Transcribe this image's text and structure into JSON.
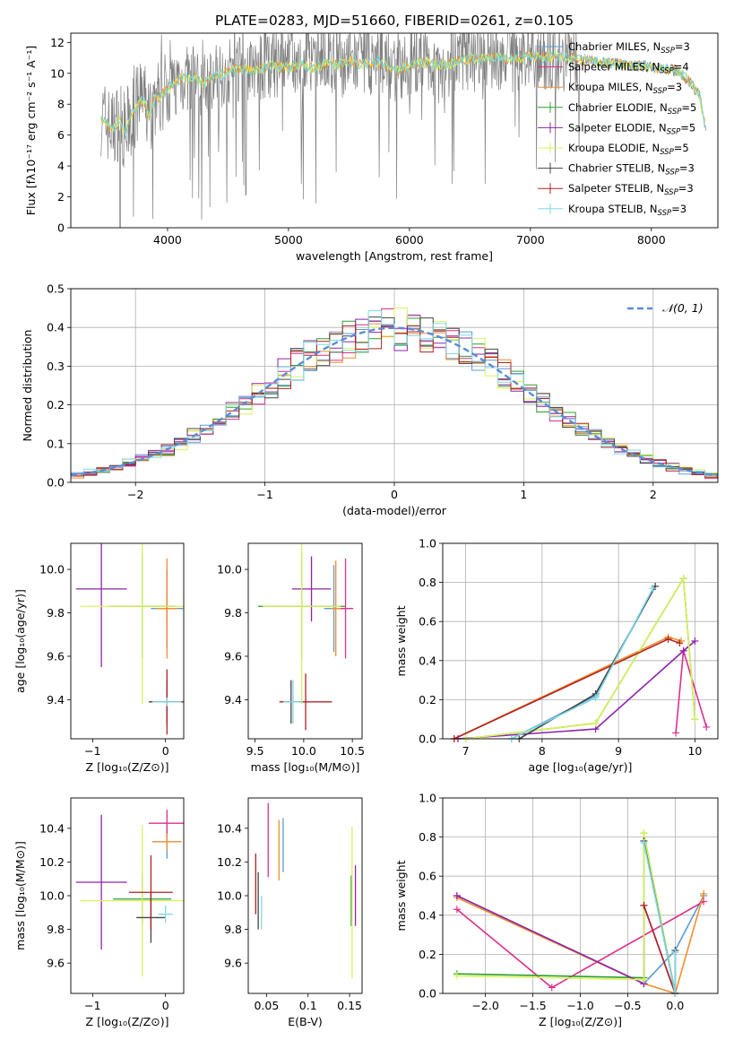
{
  "colors": {
    "c1": "#5b9bd5",
    "c2": "#dc2f8c",
    "c3": "#f28e2b",
    "c4": "#2ca02c",
    "c5": "#8e24aa",
    "c6": "#d9f25c",
    "c7": "#444444",
    "c8": "#b22222",
    "c9": "#7fd8e6",
    "grey": "#808080",
    "cyan": "#6fd6dc",
    "gauss": "#5b8bd8"
  },
  "series": [
    {
      "name": "Chabrier MILES, N",
      "sub": "SSP",
      "suffix": "=3",
      "color": "#5b9bd5"
    },
    {
      "name": "Salpeter MILES, N",
      "sub": "SSP",
      "suffix": "=4",
      "color": "#dc2f8c"
    },
    {
      "name": "Kroupa MILES, N",
      "sub": "SSP",
      "suffix": "=3",
      "color": "#f28e2b"
    },
    {
      "name": "Chabrier ELODIE, N",
      "sub": "SSP",
      "suffix": "=5",
      "color": "#2ca02c"
    },
    {
      "name": "Salpeter ELODIE, N",
      "sub": "SSP",
      "suffix": "=5",
      "color": "#8e24aa"
    },
    {
      "name": "Kroupa ELODIE, N",
      "sub": "SSP",
      "suffix": "=5",
      "color": "#d9f25c"
    },
    {
      "name": "Chabrier STELIB, N",
      "sub": "SSP",
      "suffix": "=3",
      "color": "#444444"
    },
    {
      "name": "Salpeter STELIB, N",
      "sub": "SSP",
      "suffix": "=3",
      "color": "#b22222"
    },
    {
      "name": "Kroupa STELIB, N",
      "sub": "SSP",
      "suffix": "=3",
      "color": "#7fd8e6"
    }
  ],
  "chart_data": [
    {
      "type": "line",
      "title": "PLATE=0283, MJD=51660, FIBERID=0261, z=0.105",
      "xlabel": "wavelength [Angstrom, rest frame]",
      "ylabel": "Flux [fλ10⁻¹⁷ erg cm⁻² s⁻¹ A⁻¹]",
      "xlim": [
        3200,
        8550
      ],
      "ylim": [
        0,
        12.6
      ],
      "xticks": [
        4000,
        5000,
        6000,
        7000,
        8000
      ],
      "yticks": [
        0,
        2,
        4,
        6,
        8,
        10,
        12
      ],
      "continuum": [
        [
          3450,
          7.2
        ],
        [
          3500,
          6.8
        ],
        [
          3550,
          6.4
        ],
        [
          3600,
          7.0
        ],
        [
          3650,
          6.1
        ],
        [
          3700,
          7.4
        ],
        [
          3750,
          7.9
        ],
        [
          3800,
          8.3
        ],
        [
          3850,
          7.2
        ],
        [
          3900,
          8.4
        ],
        [
          3950,
          8.6
        ],
        [
          4000,
          9.0
        ],
        [
          4100,
          9.6
        ],
        [
          4200,
          9.7
        ],
        [
          4300,
          9.3
        ],
        [
          4400,
          9.8
        ],
        [
          4500,
          10.1
        ],
        [
          4600,
          10.3
        ],
        [
          4700,
          10.2
        ],
        [
          4800,
          10.4
        ],
        [
          4900,
          10.5
        ],
        [
          5000,
          10.4
        ],
        [
          5100,
          10.6
        ],
        [
          5200,
          10.3
        ],
        [
          5300,
          10.7
        ],
        [
          5400,
          10.5
        ],
        [
          5500,
          10.8
        ],
        [
          5600,
          10.6
        ],
        [
          5700,
          10.7
        ],
        [
          5800,
          10.6
        ],
        [
          5900,
          10.2
        ],
        [
          6000,
          10.5
        ],
        [
          6100,
          10.7
        ],
        [
          6200,
          10.6
        ],
        [
          6300,
          10.5
        ],
        [
          6400,
          10.8
        ],
        [
          6500,
          11.0
        ],
        [
          6600,
          10.9
        ],
        [
          6700,
          11.1
        ],
        [
          6800,
          10.9
        ],
        [
          6900,
          11.0
        ],
        [
          7000,
          11.1
        ],
        [
          7100,
          11.0
        ],
        [
          7200,
          11.1
        ],
        [
          7300,
          11.0
        ],
        [
          7400,
          10.9
        ],
        [
          7500,
          10.8
        ],
        [
          7600,
          10.7
        ],
        [
          7700,
          10.6
        ],
        [
          7800,
          10.5
        ],
        [
          7900,
          10.5
        ],
        [
          8000,
          10.4
        ],
        [
          8100,
          10.3
        ],
        [
          8200,
          10.2
        ],
        [
          8300,
          9.6
        ],
        [
          8400,
          8.6
        ],
        [
          8450,
          6.3
        ]
      ],
      "legend": "right"
    },
    {
      "type": "bar",
      "xlabel": "(data-model)/error",
      "ylabel": "Normed distribution",
      "xlim": [
        -2.5,
        2.5
      ],
      "ylim": [
        0,
        0.5
      ],
      "xticks": [
        -2,
        -1,
        0,
        1,
        2
      ],
      "yticks": [
        0.0,
        0.1,
        0.2,
        0.3,
        0.4,
        0.5
      ],
      "bin_width": 0.1,
      "legend_label": "𝒩(0, 1)",
      "legend": "top-right"
    },
    {
      "type": "scatter",
      "xlabel": "Z [log₁₀(Z/Z⊙)]",
      "ylabel": "age  [log₁₀(age/yr)]",
      "xlim": [
        -1.3,
        0.25
      ],
      "ylim": [
        9.22,
        10.12
      ],
      "xticks": [
        -1,
        0
      ],
      "yticks": [
        9.4,
        9.6,
        9.8,
        10.0
      ],
      "points": [
        {
          "x": 0.02,
          "y": 9.82,
          "xerr": 0.22,
          "yerr": 0.06,
          "s": 0
        },
        {
          "x": 0.02,
          "y": 9.82,
          "xerr": 0.06,
          "yerr": 0.18,
          "s": 1
        },
        {
          "x": 0.02,
          "y": 9.82,
          "xerr": 0.15,
          "yerr": 0.23,
          "s": 2
        },
        {
          "x": -0.32,
          "y": 9.83,
          "xerr": 0.45,
          "yerr": 0.24,
          "s": 3
        },
        {
          "x": -0.88,
          "y": 9.91,
          "xerr": 0.35,
          "yerr": 0.36,
          "s": 4
        },
        {
          "x": -0.32,
          "y": 9.83,
          "xerr": 0.85,
          "yerr": 0.45,
          "s": 5
        },
        {
          "x": 0.02,
          "y": 9.39,
          "xerr": 0.25,
          "yerr": 0.1,
          "s": 6
        },
        {
          "x": 0.02,
          "y": 9.39,
          "xerr": 0.22,
          "yerr": 0.15,
          "s": 7
        },
        {
          "x": 0.02,
          "y": 9.39,
          "xerr": 0.2,
          "yerr": 0.02,
          "s": 8
        }
      ]
    },
    {
      "type": "scatter",
      "xlabel": "mass [log₁₀(M/M⊙)]",
      "ylabel": "",
      "xlim": [
        9.43,
        10.6
      ],
      "ylim": [
        9.22,
        10.12
      ],
      "xticks": [
        9.5,
        10.0,
        10.5
      ],
      "yticks": [
        9.4,
        9.6,
        9.8,
        10.0
      ],
      "points": [
        {
          "x": 10.31,
          "y": 9.82,
          "xerr": 0.1,
          "yerr": 0.2,
          "s": 0
        },
        {
          "x": 10.43,
          "y": 9.82,
          "xerr": 0.08,
          "yerr": 0.23,
          "s": 1
        },
        {
          "x": 10.33,
          "y": 9.82,
          "xerr": 0.05,
          "yerr": 0.22,
          "s": 2
        },
        {
          "x": 9.98,
          "y": 9.83,
          "xerr": 0.45,
          "yerr": 0.24,
          "s": 3
        },
        {
          "x": 10.08,
          "y": 9.91,
          "xerr": 0.2,
          "yerr": 0.15,
          "s": 4
        },
        {
          "x": 9.98,
          "y": 9.83,
          "xerr": 0.4,
          "yerr": 0.45,
          "s": 5
        },
        {
          "x": 9.87,
          "y": 9.39,
          "xerr": 0.1,
          "yerr": 0.1,
          "s": 6
        },
        {
          "x": 10.02,
          "y": 9.39,
          "xerr": 0.27,
          "yerr": 0.13,
          "s": 7
        },
        {
          "x": 9.89,
          "y": 9.39,
          "xerr": 0.1,
          "yerr": 0.1,
          "s": 8
        }
      ]
    },
    {
      "type": "line",
      "xlabel": "age  [log₁₀(age/yr)]",
      "ylabel": "mass weight",
      "xlim": [
        6.7,
        10.3
      ],
      "ylim": [
        0,
        1.0
      ],
      "xticks": [
        7,
        8,
        9,
        10
      ],
      "yticks": [
        0.0,
        0.2,
        0.4,
        0.6,
        0.8,
        1.0
      ],
      "series_points": [
        {
          "s": 0,
          "pts": [
            [
              7.6,
              0.0
            ],
            [
              8.7,
              0.22
            ],
            [
              9.48,
              0.78
            ]
          ]
        },
        {
          "s": 1,
          "pts": [
            [
              9.75,
              0.03
            ],
            [
              9.85,
              0.45
            ],
            [
              10.15,
              0.06
            ]
          ]
        },
        {
          "s": 2,
          "pts": [
            [
              6.85,
              0.0
            ],
            [
              9.65,
              0.52
            ],
            [
              9.82,
              0.5
            ]
          ]
        },
        {
          "s": 3,
          "pts": [
            [
              7.0,
              0.0
            ],
            [
              8.7,
              0.08
            ],
            [
              9.85,
              0.82
            ],
            [
              10.0,
              0.1
            ]
          ]
        },
        {
          "s": 4,
          "pts": [
            [
              6.9,
              0.0
            ],
            [
              8.7,
              0.05
            ],
            [
              9.85,
              0.45
            ],
            [
              10.0,
              0.5
            ]
          ]
        },
        {
          "s": 5,
          "pts": [
            [
              7.0,
              0.0
            ],
            [
              8.7,
              0.08
            ],
            [
              9.85,
              0.82
            ],
            [
              10.0,
              0.1
            ]
          ]
        },
        {
          "s": 6,
          "pts": [
            [
              7.7,
              0.0
            ],
            [
              8.7,
              0.23
            ],
            [
              9.48,
              0.78
            ]
          ]
        },
        {
          "s": 7,
          "pts": [
            [
              6.85,
              0.0
            ],
            [
              9.65,
              0.51
            ],
            [
              9.8,
              0.49
            ]
          ]
        },
        {
          "s": 8,
          "pts": [
            [
              7.6,
              0.0
            ],
            [
              8.7,
              0.21
            ],
            [
              9.45,
              0.77
            ]
          ]
        }
      ]
    },
    {
      "type": "scatter",
      "xlabel": "Z [log₁₀(Z/Z⊙)]",
      "ylabel": "mass [log₁₀(M/M⊙)]",
      "xlim": [
        -1.3,
        0.25
      ],
      "ylim": [
        9.42,
        10.58
      ],
      "xticks": [
        -1,
        0
      ],
      "yticks": [
        9.6,
        9.8,
        10.0,
        10.2,
        10.4
      ],
      "points": [
        {
          "x": 0.02,
          "y": 10.32,
          "xerr": 0.2,
          "yerr": 0.1,
          "s": 0
        },
        {
          "x": 0.02,
          "y": 10.43,
          "xerr": 0.25,
          "yerr": 0.08,
          "s": 1
        },
        {
          "x": 0.02,
          "y": 10.32,
          "xerr": 0.2,
          "yerr": 0.05,
          "s": 2
        },
        {
          "x": -0.32,
          "y": 9.98,
          "xerr": 0.4,
          "yerr": 0.15,
          "s": 3
        },
        {
          "x": -0.88,
          "y": 10.08,
          "xerr": 0.35,
          "yerr": 0.4,
          "s": 4
        },
        {
          "x": -0.32,
          "y": 9.97,
          "xerr": 0.85,
          "yerr": 0.45,
          "s": 5
        },
        {
          "x": -0.2,
          "y": 9.87,
          "xerr": 0.2,
          "yerr": 0.15,
          "s": 6
        },
        {
          "x": -0.2,
          "y": 10.02,
          "xerr": 0.3,
          "yerr": 0.22,
          "s": 7
        },
        {
          "x": 0.0,
          "y": 9.89,
          "xerr": 0.1,
          "yerr": 0.05,
          "s": 8
        }
      ]
    },
    {
      "type": "scatter",
      "xlabel": "E(B-V)",
      "ylabel": "",
      "xlim": [
        0.028,
        0.165
      ],
      "ylim": [
        9.42,
        10.58
      ],
      "xticks": [
        0.05,
        0.1,
        0.15
      ],
      "yticks": [
        9.6,
        9.8,
        10.0,
        10.2,
        10.4
      ],
      "points": [
        {
          "x": 0.07,
          "y": 10.3,
          "xerr": 0,
          "yerr": 0.16,
          "s": 0
        },
        {
          "x": 0.052,
          "y": 10.33,
          "xerr": 0,
          "yerr": 0.22,
          "s": 1
        },
        {
          "x": 0.065,
          "y": 10.27,
          "xerr": 0,
          "yerr": 0.18,
          "s": 2
        },
        {
          "x": 0.152,
          "y": 9.97,
          "xerr": 0,
          "yerr": 0.15,
          "s": 3
        },
        {
          "x": 0.157,
          "y": 10.0,
          "xerr": 0,
          "yerr": 0.18,
          "s": 4
        },
        {
          "x": 0.153,
          "y": 9.96,
          "xerr": 0,
          "yerr": 0.45,
          "s": 5
        },
        {
          "x": 0.04,
          "y": 9.97,
          "xerr": 0,
          "yerr": 0.17,
          "s": 6
        },
        {
          "x": 0.037,
          "y": 10.07,
          "xerr": 0,
          "yerr": 0.18,
          "s": 7
        },
        {
          "x": 0.044,
          "y": 9.9,
          "xerr": 0,
          "yerr": 0.1,
          "s": 8
        }
      ]
    },
    {
      "type": "line",
      "xlabel": "Z [log₁₀(Z/Z⊙)]",
      "ylabel": "mass weight",
      "xlim": [
        -2.45,
        0.45
      ],
      "ylim": [
        0,
        1.0
      ],
      "xticks": [
        -2.0,
        -1.5,
        -1.0,
        -0.5,
        0.0
      ],
      "yticks": [
        0.0,
        0.2,
        0.4,
        0.6,
        0.8,
        1.0
      ],
      "series_points": [
        {
          "s": 0,
          "pts": [
            [
              -2.3,
              0.5
            ],
            [
              -0.33,
              0.05
            ],
            [
              0.0,
              0.22
            ],
            [
              0.3,
              0.5
            ]
          ]
        },
        {
          "s": 1,
          "pts": [
            [
              -2.3,
              0.43
            ],
            [
              -1.3,
              0.03
            ],
            [
              0.3,
              0.47
            ]
          ]
        },
        {
          "s": 2,
          "pts": [
            [
              -2.3,
              0.49
            ],
            [
              -0.33,
              0.05
            ],
            [
              0.0,
              0.0
            ],
            [
              0.3,
              0.51
            ]
          ]
        },
        {
          "s": 3,
          "pts": [
            [
              -2.3,
              0.1
            ],
            [
              -0.33,
              0.08
            ],
            [
              -0.33,
              0.82
            ],
            [
              0.0,
              0.0
            ]
          ]
        },
        {
          "s": 4,
          "pts": [
            [
              -2.3,
              0.5
            ],
            [
              -0.33,
              0.05
            ],
            [
              -0.33,
              0.45
            ],
            [
              0.0,
              0.0
            ]
          ]
        },
        {
          "s": 5,
          "pts": [
            [
              -2.3,
              0.09
            ],
            [
              -0.33,
              0.07
            ],
            [
              -0.33,
              0.82
            ],
            [
              0.0,
              0.0
            ]
          ]
        },
        {
          "s": 6,
          "pts": [
            [
              -0.33,
              0.78
            ],
            [
              0.0,
              0.0
            ],
            [
              0.0,
              0.22
            ]
          ]
        },
        {
          "s": 7,
          "pts": [
            [
              -0.33,
              0.45
            ],
            [
              0.0,
              0.0
            ]
          ]
        },
        {
          "s": 8,
          "pts": [
            [
              -0.33,
              0.77
            ],
            [
              0.0,
              0.0
            ],
            [
              0.0,
              0.21
            ]
          ]
        }
      ]
    }
  ]
}
